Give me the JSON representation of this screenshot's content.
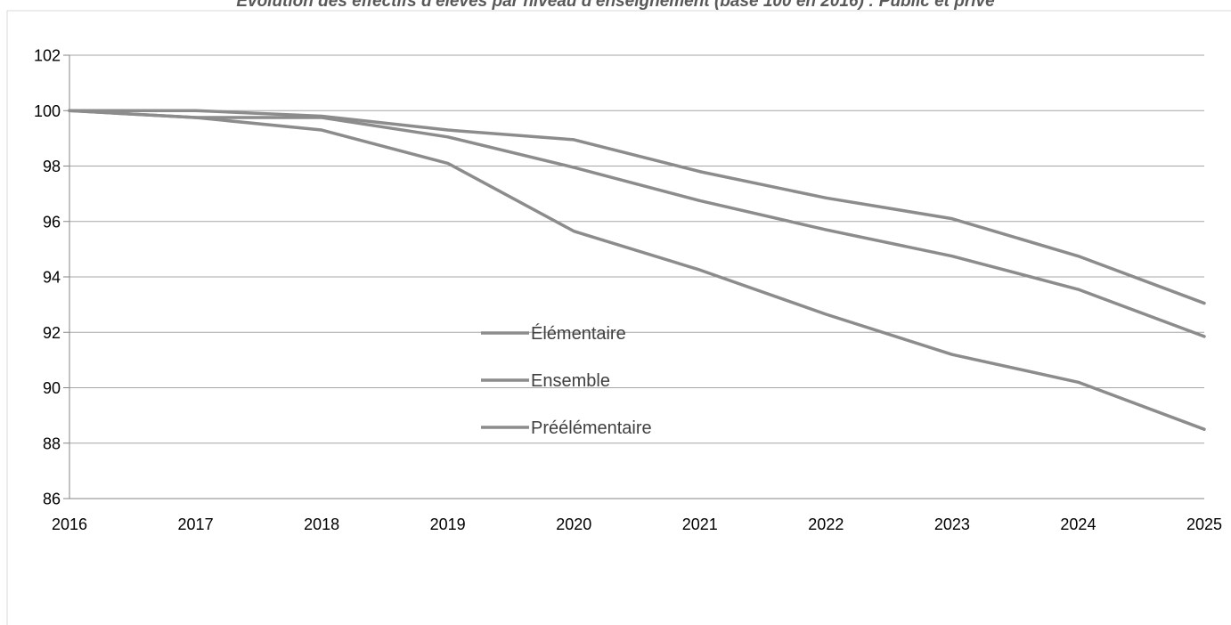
{
  "chart_data": {
    "type": "line",
    "title": "Évolution des effectifs d'élèves par niveau d'enseignement (base 100 en 2016) : Public et privé",
    "xlabel": "",
    "ylabel": "",
    "x": [
      2016,
      2017,
      2018,
      2019,
      2020,
      2021,
      2022,
      2023,
      2024,
      2025
    ],
    "ylim": [
      86,
      102
    ],
    "yticks": [
      86,
      88,
      90,
      92,
      94,
      96,
      98,
      100,
      102
    ],
    "grid": true,
    "legend_position": "center",
    "line_color": "#8c8c8c",
    "series": [
      {
        "name": "Élémentaire",
        "values": [
          100,
          100,
          99.8,
          99.3,
          98.95,
          97.8,
          96.85,
          96.1,
          94.75,
          93.05
        ]
      },
      {
        "name": "Ensemble",
        "values": [
          100,
          99.75,
          99.75,
          99.05,
          97.95,
          96.75,
          95.7,
          94.75,
          93.55,
          91.85
        ]
      },
      {
        "name": "Préélémentaire",
        "values": [
          100,
          99.75,
          99.3,
          98.1,
          95.65,
          94.25,
          92.65,
          91.2,
          90.2,
          88.5
        ]
      }
    ]
  }
}
